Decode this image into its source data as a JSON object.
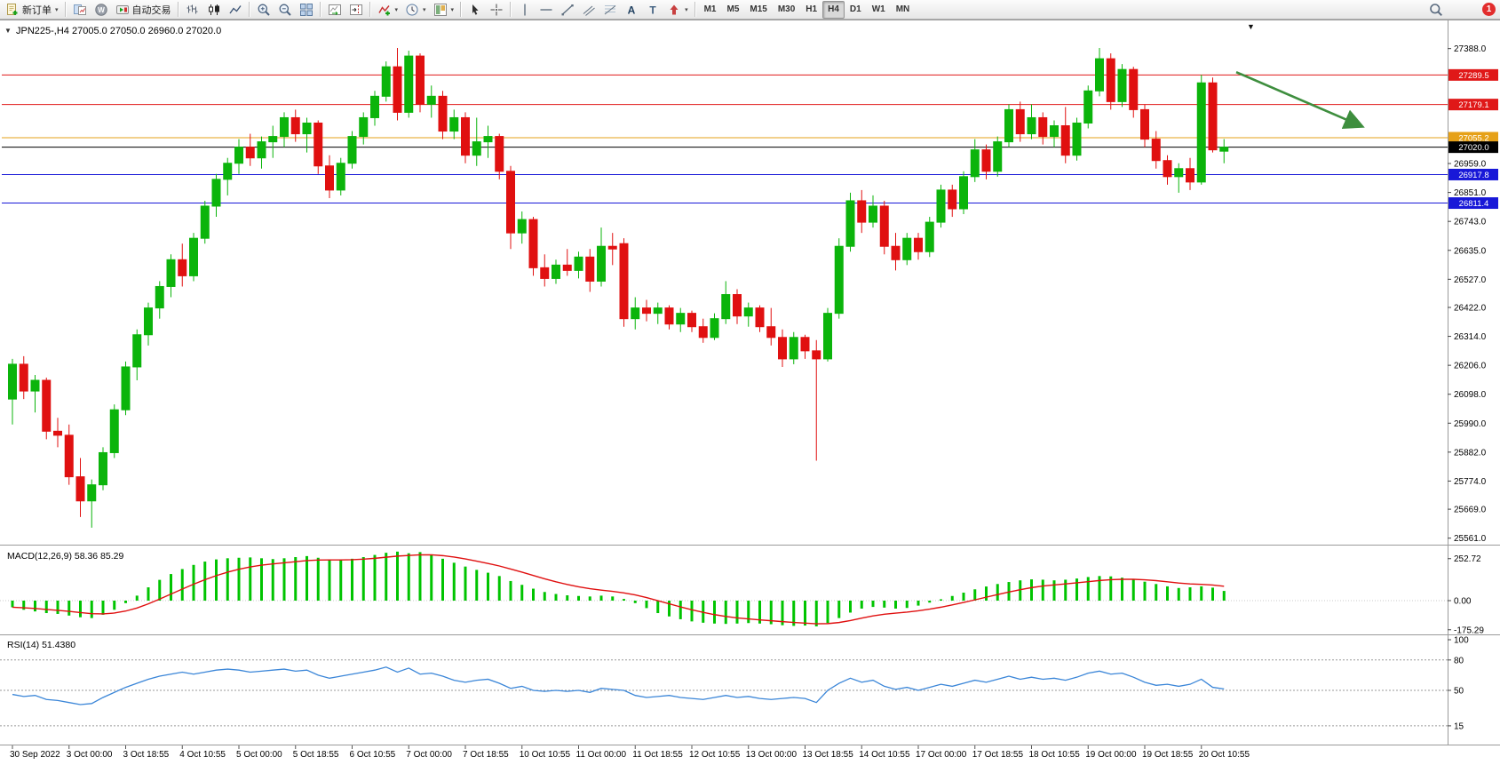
{
  "toolbar": {
    "new_order_label": "新订单",
    "autotrade_label": "自动交易",
    "caret": "▾",
    "glyphs": {
      "community": "W",
      "text_tool": "A",
      "label_tool": "T"
    },
    "timeframes": [
      "M1",
      "M5",
      "M15",
      "M30",
      "H1",
      "H4",
      "D1",
      "W1",
      "MN"
    ],
    "active_timeframe": "H4",
    "badge_count": "1"
  },
  "chart": {
    "symbol_title": "JPN225-,H4",
    "ohlc_text": "27005.0 27050.0 26960.0 27020.0",
    "window_marker": "▼"
  },
  "colors": {
    "bull": "#0bb40b",
    "bear": "#e01010",
    "macd_hist": "#00c400",
    "macd_signal": "#e01010",
    "rsi_line": "#3b86d8",
    "level_red": "#e01818",
    "level_orange": "#e6a118",
    "level_blue": "#1818d8",
    "level_black": "#000000",
    "arrow_green": "#3e8e3e"
  },
  "chart_data": {
    "type": "candlestick",
    "symbol": "JPN225-",
    "timeframe": "H4",
    "last_ohlc": {
      "open": 27005.0,
      "high": 27050.0,
      "low": 26960.0,
      "close": 27020.0
    },
    "price_axis_labels": [
      "27388.0",
      "26959.0",
      "26851.0",
      "26743.0",
      "26635.0",
      "26527.0",
      "26422.0",
      "26314.0",
      "26206.0",
      "26098.0",
      "25990.0",
      "25882.0",
      "25774.0",
      "25669.0",
      "25561.0"
    ],
    "levels": [
      {
        "label": "27289.5",
        "price": 27289.5,
        "color": "#e01818"
      },
      {
        "label": "27179.1",
        "price": 27179.1,
        "color": "#e01818"
      },
      {
        "label": "27055.2",
        "price": 27055.2,
        "color": "#e6a118"
      },
      {
        "label": "27020.0",
        "price": 27020.0,
        "color": "#000000"
      },
      {
        "label": "26917.8",
        "price": 26917.8,
        "color": "#1818d8"
      },
      {
        "label": "26811.4",
        "price": 26811.4,
        "color": "#1818d8"
      }
    ],
    "time_labels": [
      "30 Sep 2022",
      "3 Oct 00:00",
      "3 Oct 18:55",
      "4 Oct 10:55",
      "5 Oct 00:00",
      "5 Oct 18:55",
      "6 Oct 10:55",
      "7 Oct 00:00",
      "7 Oct 18:55",
      "10 Oct 10:55",
      "11 Oct 00:00",
      "11 Oct 18:55",
      "12 Oct 10:55",
      "13 Oct 00:00",
      "13 Oct 18:55",
      "14 Oct 10:55",
      "17 Oct 00:00",
      "17 Oct 18:55",
      "18 Oct 10:55",
      "19 Oct 00:00",
      "19 Oct 18:55",
      "20 Oct 10:55"
    ],
    "candles": [
      [
        26080,
        26230,
        25985,
        26210
      ],
      [
        26210,
        26240,
        26080,
        26110
      ],
      [
        26110,
        26170,
        26030,
        26150
      ],
      [
        26150,
        26160,
        25930,
        25960
      ],
      [
        25960,
        26010,
        25900,
        25945
      ],
      [
        25945,
        25985,
        25760,
        25790
      ],
      [
        25790,
        25860,
        25640,
        25700
      ],
      [
        25700,
        25780,
        25600,
        25760
      ],
      [
        25760,
        25900,
        25740,
        25880
      ],
      [
        25880,
        26060,
        25860,
        26040
      ],
      [
        26040,
        26220,
        26020,
        26200
      ],
      [
        26200,
        26340,
        26150,
        26320
      ],
      [
        26320,
        26440,
        26280,
        26420
      ],
      [
        26420,
        26520,
        26380,
        26500
      ],
      [
        26500,
        26620,
        26460,
        26600
      ],
      [
        26600,
        26660,
        26500,
        26540
      ],
      [
        26540,
        26700,
        26520,
        26680
      ],
      [
        26680,
        26820,
        26660,
        26800
      ],
      [
        26800,
        26920,
        26760,
        26900
      ],
      [
        26900,
        26980,
        26840,
        26960
      ],
      [
        26960,
        27050,
        26920,
        27020
      ],
      [
        27020,
        27070,
        26950,
        26980
      ],
      [
        26980,
        27060,
        26940,
        27040
      ],
      [
        27040,
        27100,
        26980,
        27060
      ],
      [
        27060,
        27150,
        27020,
        27130
      ],
      [
        27130,
        27160,
        27040,
        27070
      ],
      [
        27070,
        27130,
        27000,
        27110
      ],
      [
        27110,
        27120,
        26920,
        26950
      ],
      [
        26950,
        26990,
        26830,
        26860
      ],
      [
        26860,
        26980,
        26840,
        26960
      ],
      [
        26960,
        27080,
        26940,
        27060
      ],
      [
        27060,
        27150,
        27030,
        27130
      ],
      [
        27130,
        27230,
        27100,
        27210
      ],
      [
        27210,
        27340,
        27190,
        27320
      ],
      [
        27320,
        27390,
        27120,
        27150
      ],
      [
        27150,
        27380,
        27130,
        27360
      ],
      [
        27360,
        27370,
        27150,
        27180
      ],
      [
        27180,
        27250,
        27130,
        27210
      ],
      [
        27210,
        27230,
        27050,
        27080
      ],
      [
        27080,
        27160,
        27050,
        27130
      ],
      [
        27130,
        27150,
        26960,
        26990
      ],
      [
        26990,
        27130,
        26950,
        27040
      ],
      [
        27040,
        27100,
        26980,
        27060
      ],
      [
        27060,
        27070,
        26900,
        26930
      ],
      [
        26930,
        26950,
        26640,
        26700
      ],
      [
        26700,
        26780,
        26660,
        26750
      ],
      [
        26750,
        26760,
        26540,
        26570
      ],
      [
        26570,
        26620,
        26500,
        26530
      ],
      [
        26530,
        26600,
        26510,
        26580
      ],
      [
        26580,
        26640,
        26540,
        26560
      ],
      [
        26560,
        26630,
        26530,
        26610
      ],
      [
        26610,
        26640,
        26480,
        26520
      ],
      [
        26520,
        26720,
        26500,
        26650
      ],
      [
        26650,
        26700,
        26580,
        26640
      ],
      [
        26660,
        26680,
        26350,
        26380
      ],
      [
        26380,
        26460,
        26340,
        26420
      ],
      [
        26420,
        26450,
        26370,
        26400
      ],
      [
        26400,
        26440,
        26360,
        26420
      ],
      [
        26420,
        26430,
        26340,
        26360
      ],
      [
        26360,
        26420,
        26330,
        26400
      ],
      [
        26400,
        26410,
        26330,
        26350
      ],
      [
        26350,
        26380,
        26290,
        26310
      ],
      [
        26310,
        26400,
        26300,
        26380
      ],
      [
        26380,
        26520,
        26360,
        26470
      ],
      [
        26470,
        26490,
        26360,
        26390
      ],
      [
        26390,
        26440,
        26350,
        26420
      ],
      [
        26420,
        26430,
        26330,
        26350
      ],
      [
        26350,
        26420,
        26280,
        26310
      ],
      [
        26310,
        26340,
        26200,
        26230
      ],
      [
        26230,
        26330,
        26210,
        26310
      ],
      [
        26310,
        26320,
        26230,
        26260
      ],
      [
        26260,
        26300,
        25850,
        26230
      ],
      [
        26230,
        26420,
        26220,
        26400
      ],
      [
        26400,
        26680,
        26380,
        26650
      ],
      [
        26650,
        26850,
        26630,
        26820
      ],
      [
        26820,
        26860,
        26700,
        26740
      ],
      [
        26740,
        26840,
        26720,
        26800
      ],
      [
        26800,
        26820,
        26620,
        26650
      ],
      [
        26650,
        26700,
        26560,
        26600
      ],
      [
        26600,
        26700,
        26580,
        26680
      ],
      [
        26680,
        26700,
        26600,
        26630
      ],
      [
        26630,
        26760,
        26610,
        26740
      ],
      [
        26740,
        26880,
        26720,
        26860
      ],
      [
        26860,
        26880,
        26760,
        26790
      ],
      [
        26790,
        26930,
        26770,
        26910
      ],
      [
        26910,
        27050,
        26890,
        27010
      ],
      [
        27010,
        27030,
        26900,
        26930
      ],
      [
        26930,
        27060,
        26910,
        27040
      ],
      [
        27040,
        27180,
        27020,
        27160
      ],
      [
        27160,
        27190,
        27040,
        27070
      ],
      [
        27070,
        27180,
        27050,
        27130
      ],
      [
        27130,
        27150,
        27030,
        27060
      ],
      [
        27060,
        27120,
        27020,
        27100
      ],
      [
        27100,
        27170,
        26960,
        26990
      ],
      [
        26990,
        27130,
        26970,
        27110
      ],
      [
        27110,
        27250,
        27090,
        27230
      ],
      [
        27230,
        27390,
        27210,
        27350
      ],
      [
        27350,
        27370,
        27160,
        27190
      ],
      [
        27190,
        27330,
        27170,
        27310
      ],
      [
        27310,
        27320,
        27130,
        27160
      ],
      [
        27160,
        27180,
        27020,
        27050
      ],
      [
        27050,
        27080,
        26940,
        26970
      ],
      [
        26970,
        26990,
        26880,
        26910
      ],
      [
        26910,
        26960,
        26850,
        26940
      ],
      [
        26940,
        26980,
        26860,
        26890
      ],
      [
        26890,
        27290,
        26880,
        27260
      ],
      [
        27260,
        27280,
        27000,
        27010
      ],
      [
        27005,
        27050,
        26960,
        27020
      ]
    ],
    "macd": {
      "label": "MACD(12,26,9) 58.36 85.29",
      "scale_labels": [
        "252.72",
        "0.00",
        "-175.29"
      ],
      "values": [
        -40,
        -55,
        -65,
        -75,
        -80,
        -90,
        -100,
        -105,
        -85,
        -55,
        -15,
        30,
        80,
        125,
        160,
        190,
        215,
        235,
        248,
        255,
        258,
        260,
        255,
        250,
        255,
        262,
        268,
        258,
        248,
        245,
        252,
        262,
        275,
        288,
        295,
        285,
        292,
        275,
        252,
        228,
        205,
        185,
        168,
        148,
        118,
        95,
        72,
        52,
        40,
        32,
        28,
        25,
        30,
        25,
        10,
        -15,
        -45,
        -75,
        -95,
        -112,
        -125,
        -133,
        -138,
        -140,
        -138,
        -135,
        -138,
        -142,
        -148,
        -152,
        -150,
        -155,
        -135,
        -105,
        -72,
        -48,
        -38,
        -42,
        -48,
        -44,
        -30,
        -12,
        8,
        28,
        48,
        68,
        85,
        100,
        112,
        122,
        128,
        126,
        122,
        126,
        133,
        142,
        148,
        146,
        138,
        128,
        114,
        100,
        86,
        76,
        80,
        86,
        78,
        58.36
      ]
    },
    "rsi": {
      "label": "RSI(14) 51.4380",
      "scale_labels": [
        "100",
        "80",
        "50",
        "15"
      ],
      "level_lines": [
        80,
        50,
        15
      ],
      "values": [
        46,
        44,
        45,
        41,
        40,
        38,
        36,
        37,
        43,
        48,
        53,
        57,
        61,
        64,
        66,
        68,
        66,
        68,
        70,
        71,
        70,
        68,
        69,
        70,
        71,
        69,
        70,
        65,
        62,
        64,
        66,
        68,
        70,
        73,
        68,
        72,
        66,
        67,
        64,
        60,
        58,
        60,
        61,
        57,
        52,
        54,
        50,
        49,
        50,
        49,
        50,
        48,
        52,
        51,
        50,
        45,
        43,
        44,
        45,
        43,
        42,
        41,
        43,
        45,
        43,
        44,
        42,
        41,
        42,
        43,
        42,
        38,
        50,
        57,
        62,
        58,
        60,
        54,
        51,
        53,
        50,
        53,
        56,
        54,
        57,
        60,
        58,
        61,
        64,
        61,
        63,
        61,
        62,
        60,
        63,
        67,
        69,
        66,
        67,
        63,
        58,
        55,
        56,
        54,
        56,
        61,
        53,
        51.44
      ]
    },
    "arrow": {
      "from_price": 27300,
      "to_price": 27100,
      "color": "#3e8e3e"
    }
  }
}
